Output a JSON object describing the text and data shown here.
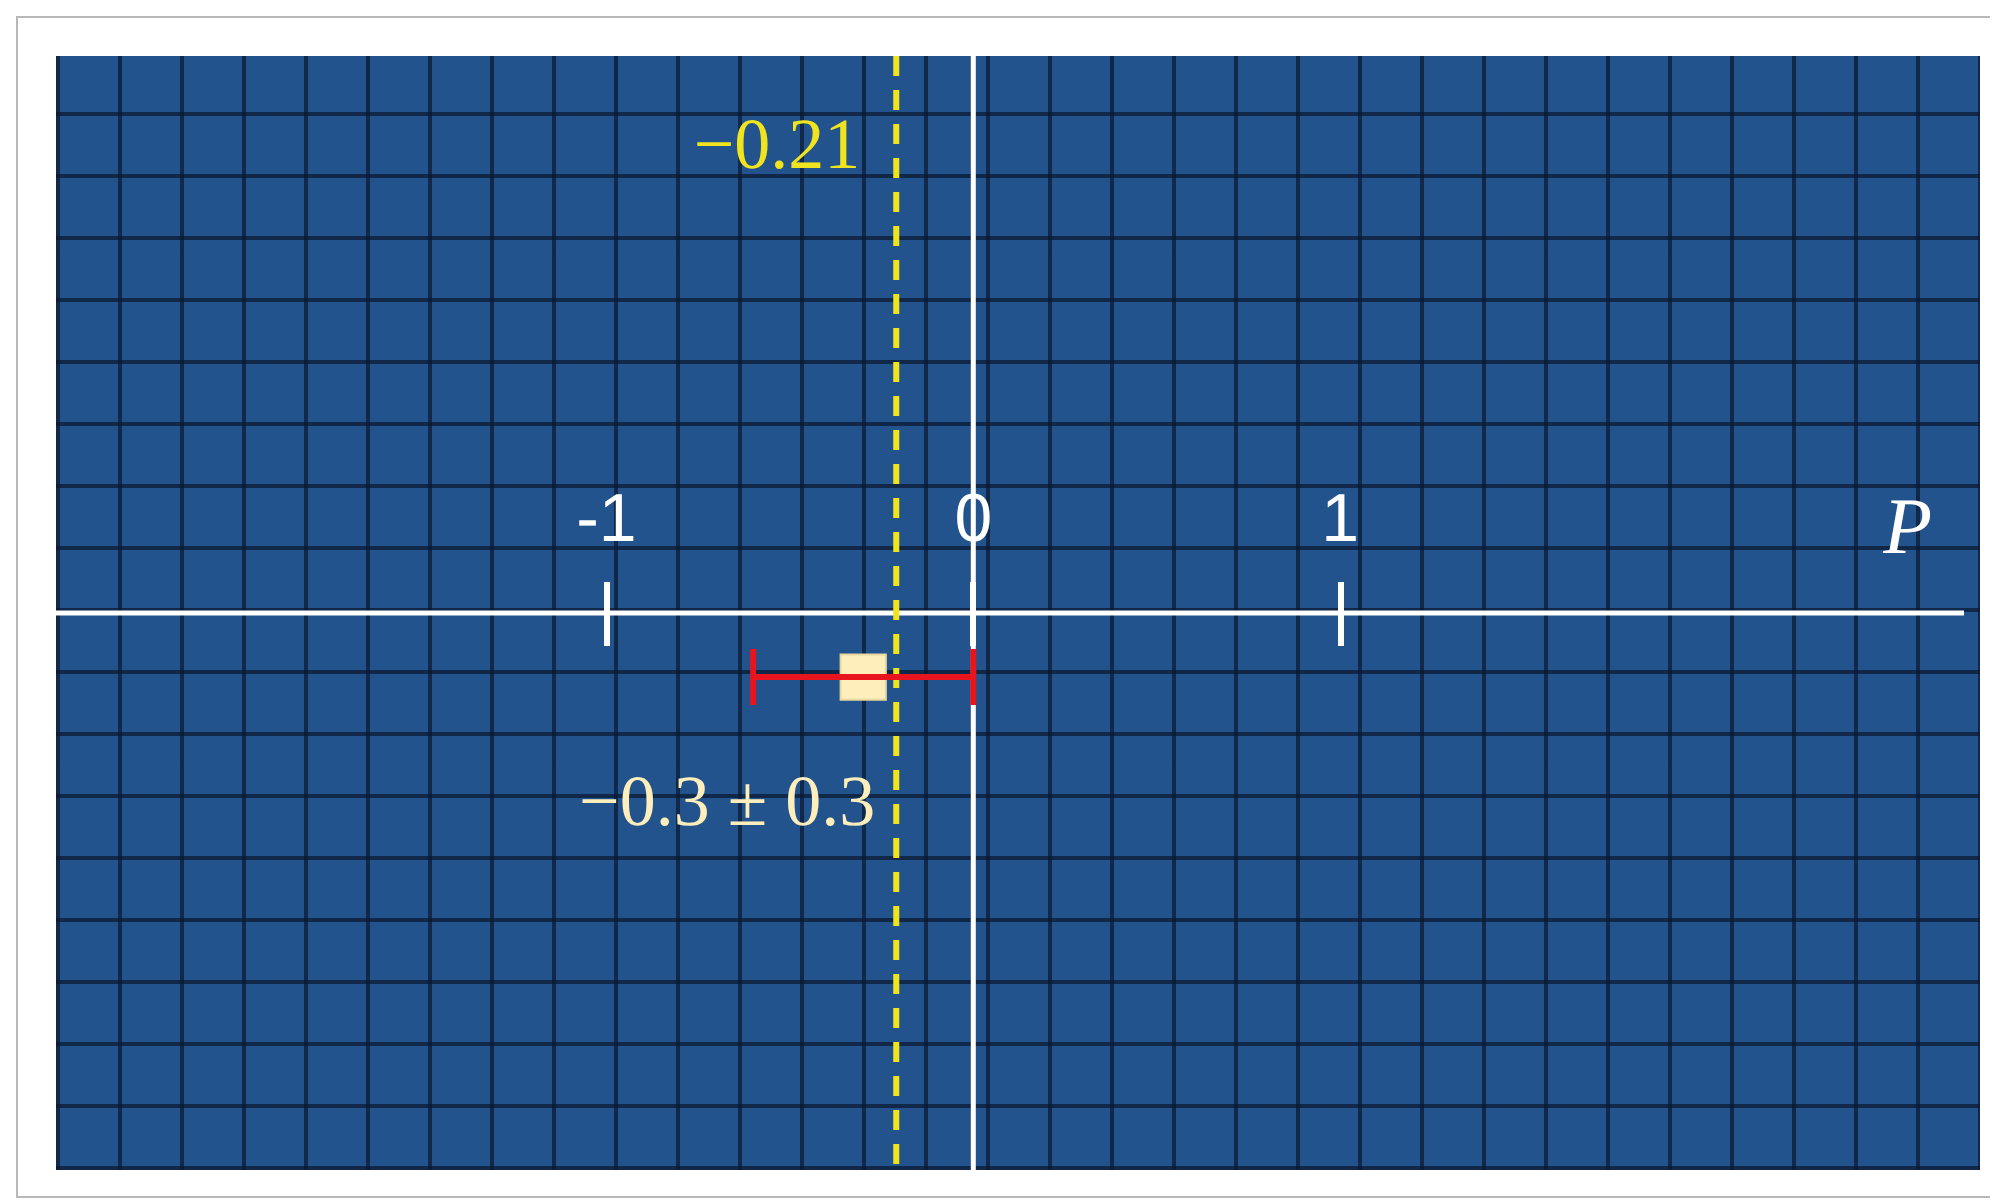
{
  "chart_data": {
    "type": "scatter",
    "orientation": "horizontal",
    "xlabel": "P",
    "categories": [
      null
    ],
    "values": [
      -0.3
    ],
    "errors": [
      0.3
    ],
    "color": "#fdeebc",
    "marker": "square",
    "xlim": [
      -2.5,
      2.7
    ],
    "xticks": [
      -1,
      0,
      1
    ],
    "ref_lines": [
      {
        "axis": "x",
        "value": -0.21,
        "label": "−0.21",
        "color": "#f0e41e",
        "line_style": "dashed"
      }
    ],
    "annotations": [
      "−0.3 ± 0.3"
    ]
  }
}
